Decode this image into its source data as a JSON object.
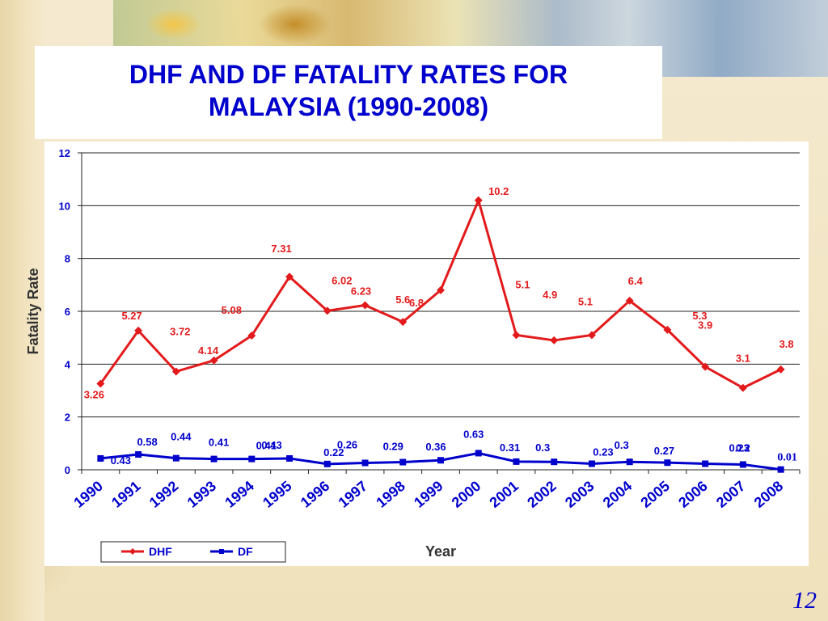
{
  "slide": {
    "title_line1": "DHF AND DF FATALITY RATES FOR",
    "title_line2": "MALAYSIA (1990-2008)",
    "page_number": "12"
  },
  "chart_data": {
    "type": "line",
    "title": "DHF AND DF FATALITY RATES FOR MALAYSIA (1990-2008)",
    "xlabel": "Year",
    "ylabel": "Fatality Rate",
    "categories": [
      "1990",
      "1991",
      "1992",
      "1993",
      "1994",
      "1995",
      "1996",
      "1997",
      "1998",
      "1999",
      "2000",
      "2001",
      "2002",
      "2003",
      "2004",
      "2005",
      "2006",
      "2007",
      "2008"
    ],
    "ylim": [
      0,
      12
    ],
    "yticks": [
      0,
      2,
      4,
      6,
      8,
      10,
      12
    ],
    "grid": "horizontal",
    "legend": "bottom-left",
    "series": [
      {
        "name": "DHF",
        "color": "#e31a1c",
        "marker": "diamond",
        "values": [
          3.26,
          5.27,
          3.72,
          4.14,
          5.08,
          7.31,
          6.02,
          6.23,
          5.6,
          6.8,
          10.2,
          5.1,
          4.9,
          5.1,
          6.4,
          5.3,
          3.9,
          3.1,
          3.8
        ],
        "labels": [
          "3.26",
          "5.27",
          "3.72",
          "4.14",
          "5.08",
          "7.31",
          "6.02",
          "6.23",
          "5.6",
          "6.8",
          "10.2",
          "5.1",
          "4.9",
          "5.1",
          "6.4",
          "5.3",
          "3.9",
          "3.1",
          "3.8"
        ]
      },
      {
        "name": "DF",
        "color": "#0000cc",
        "marker": "square",
        "values": [
          0.43,
          0.58,
          0.44,
          0.41,
          0.41,
          0.43,
          0.22,
          0.26,
          0.29,
          0.36,
          0.63,
          0.31,
          0.3,
          0.23,
          0.3,
          0.27,
          0.23,
          0.2,
          0.01
        ],
        "labels": [
          "0.43",
          "0.58",
          "0.44",
          "0.41",
          "0.41",
          "0.43",
          "0.22",
          "0.26",
          "0.29",
          "0.36",
          "0.63",
          "0.31",
          "0.3",
          "0.23",
          "0.3",
          "0.27",
          "0.23",
          "0.2",
          "0.01"
        ]
      }
    ]
  }
}
